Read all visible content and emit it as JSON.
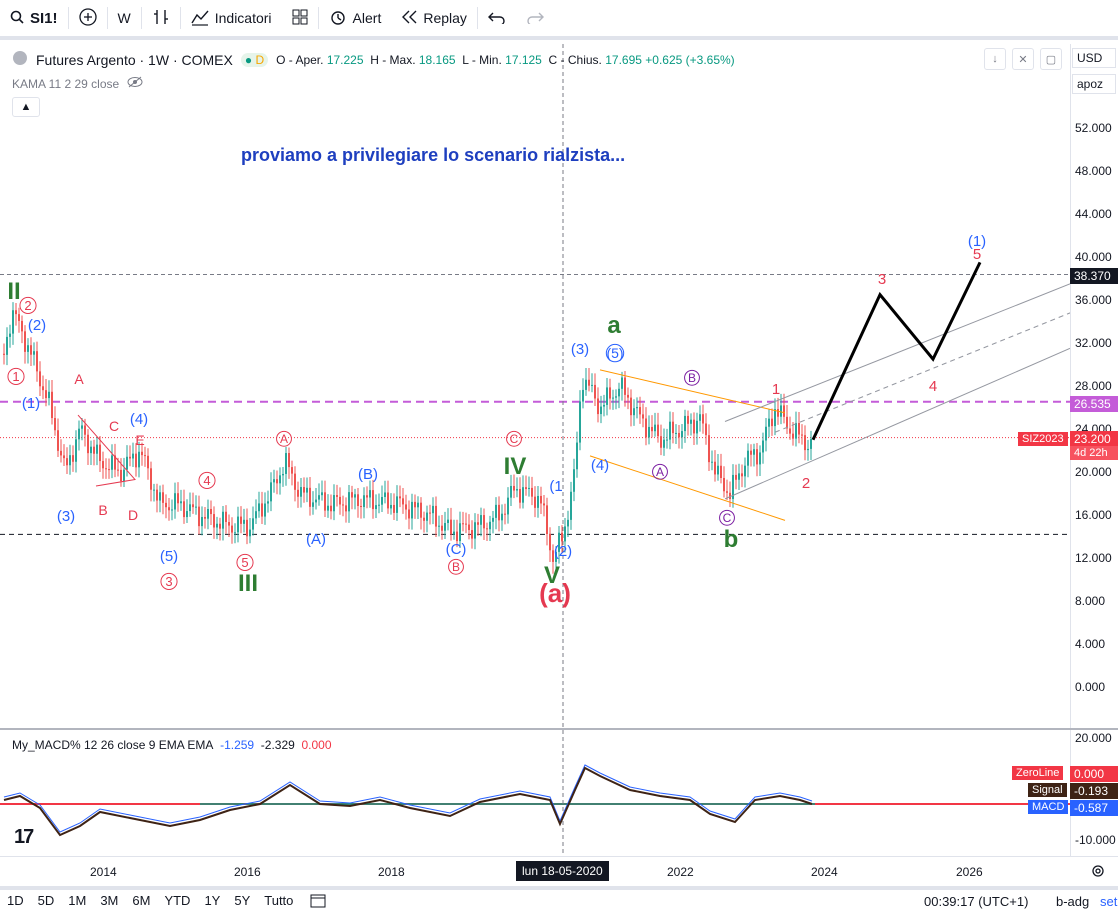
{
  "toolbar": {
    "symbol": "SI1!",
    "interval": "W",
    "indicators_label": "Indicatori",
    "alert_label": "Alert",
    "replay_label": "Replay"
  },
  "legend": {
    "title": "Futures Argento · 1W · COMEX",
    "badge": "D",
    "o_label": "O - Aper.",
    "o_value": "17.225",
    "h_label": "H - Max.",
    "h_value": "18.165",
    "l_label": "L - Min.",
    "l_value": "17.125",
    "c_label": "C - Chius.",
    "c_value": "17.695",
    "change": "+0.625 (+3.65%)",
    "kama": "KAMA 11 2 29 close"
  },
  "note": "proviamo a privilegiare lo scenario rialzista...",
  "price_scale": {
    "currency": "USD",
    "unit": "apoz",
    "ticks": [
      "52.000",
      "48.000",
      "44.000",
      "40.000",
      "36.000",
      "32.000",
      "28.000",
      "24.000",
      "20.000",
      "16.000",
      "12.000",
      "8.000",
      "4.000",
      "0.000"
    ],
    "tags": {
      "last_line": "38.370",
      "purple_line": "26.535",
      "current_price": "23.200",
      "countdown": "4d 22h",
      "symbol_tag": "SIZ2023"
    }
  },
  "macd": {
    "legend_name": "My_MACD% 12 26 close 9 EMA EMA",
    "v1": "-1.259",
    "v2": "-2.329",
    "v3": "0.000",
    "ticks": [
      "20.000",
      "-10.000"
    ],
    "tags": {
      "zeroline_label": "ZeroLine",
      "zeroline_value": "0.000",
      "signal_label": "Signal",
      "signal_value": "-0.193",
      "macd_label": "MACD",
      "macd_value": "-0.587"
    }
  },
  "time_scale": {
    "ticks": [
      "2014",
      "2016",
      "2018",
      "2022",
      "2024",
      "2026"
    ],
    "crosshair": "lun 18-05-2020"
  },
  "bottom_bar": {
    "ranges": [
      "1D",
      "5D",
      "1M",
      "3M",
      "6M",
      "YTD",
      "1Y",
      "5Y",
      "Tutto"
    ],
    "time": "00:39:17 (UTC+1)",
    "adj": "b-adg",
    "settings": "set"
  },
  "wave_labels": {
    "green": [
      "II",
      "III",
      "IV",
      "V",
      "a",
      "b"
    ],
    "blue": [
      "(2)",
      "(1)",
      "(3)",
      "(4)",
      "(5)",
      "(A)",
      "(B)",
      "(C)",
      "(2)",
      "(3)",
      "(5)",
      "(4)",
      "(1)",
      "(1)"
    ],
    "red": [
      "1",
      "3",
      "5",
      "2",
      "4",
      "A",
      "B",
      "C",
      "D",
      "E",
      "(a)"
    ]
  },
  "colors": {
    "up": "#26a69a",
    "down": "#ef5350",
    "purple": "#c45cd8",
    "blue_label": "#2962ff",
    "green_label": "#2e7d32",
    "red_label": "#e53950",
    "orange": "#ff9800"
  }
}
